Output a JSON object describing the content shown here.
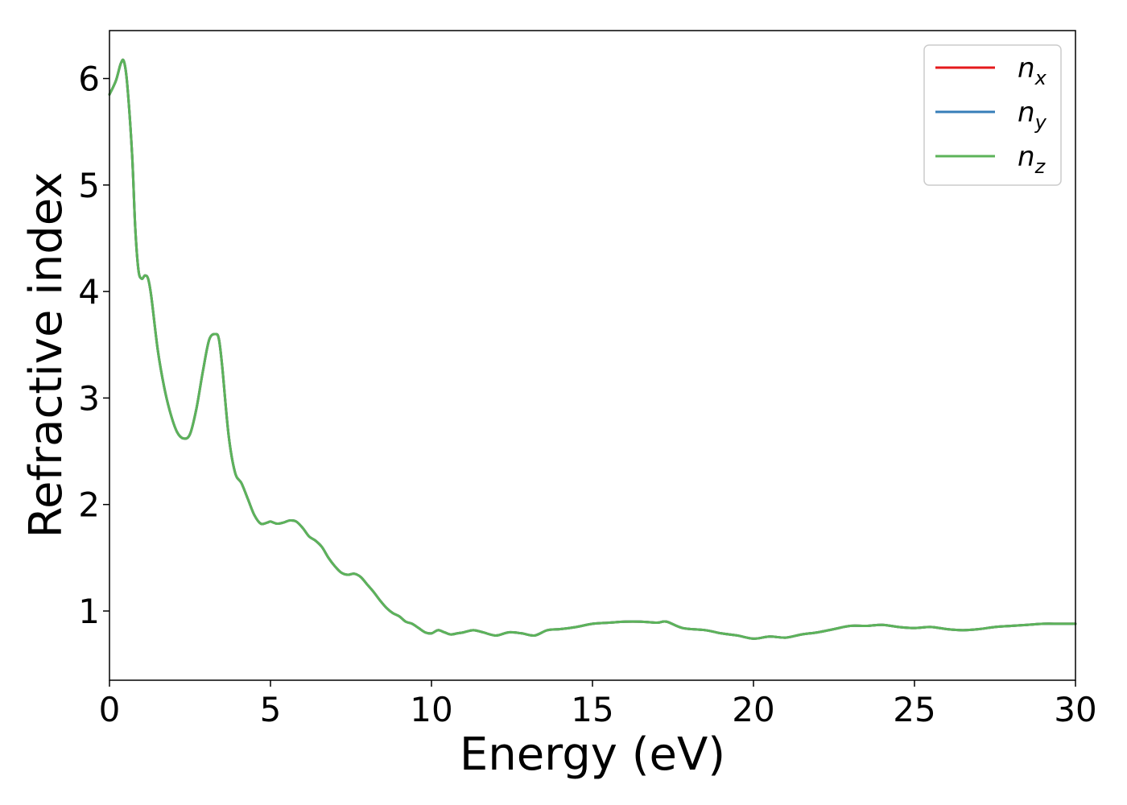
{
  "chart_data": {
    "type": "line",
    "title": "",
    "xlabel": "Energy (eV)",
    "ylabel": "Refractive index",
    "xlim": [
      0,
      30
    ],
    "ylim": [
      0.35,
      6.45
    ],
    "xticks": [
      0,
      5,
      10,
      15,
      20,
      25,
      30
    ],
    "yticks": [
      1,
      2,
      3,
      4,
      5,
      6
    ],
    "grid": false,
    "legend_position": "top-right",
    "series": [
      {
        "name": "n_x",
        "legend_main": "n",
        "legend_sub": "x",
        "color": "#e41a1c",
        "x": [
          0,
          0.2,
          0.35,
          0.45,
          0.55,
          0.7,
          0.8,
          0.9,
          1.0,
          1.1,
          1.2,
          1.3,
          1.5,
          1.7,
          1.9,
          2.1,
          2.3,
          2.5,
          2.7,
          2.9,
          3.1,
          3.3,
          3.4,
          3.5,
          3.7,
          3.9,
          4.1,
          4.3,
          4.5,
          4.7,
          4.9,
          5.0,
          5.2,
          5.4,
          5.6,
          5.8,
          6.0,
          6.2,
          6.4,
          6.6,
          6.8,
          7.0,
          7.2,
          7.4,
          7.6,
          7.8,
          8.0,
          8.2,
          8.4,
          8.6,
          8.8,
          9.0,
          9.2,
          9.4,
          9.6,
          9.8,
          10.0,
          10.2,
          10.4,
          10.6,
          10.8,
          11.0,
          11.3,
          11.6,
          12.0,
          12.4,
          12.8,
          13.2,
          13.6,
          14.0,
          14.5,
          15.0,
          15.5,
          16.0,
          16.5,
          17.0,
          17.3,
          17.8,
          18.5,
          19.0,
          19.5,
          20.0,
          20.5,
          21.0,
          21.5,
          22.0,
          22.5,
          23.0,
          23.5,
          24.0,
          24.5,
          25.0,
          25.5,
          26.0,
          26.5,
          27.0,
          27.5,
          28.0,
          28.5,
          29.0,
          29.5,
          30.0
        ],
        "y": [
          5.85,
          5.98,
          6.14,
          6.16,
          5.95,
          5.3,
          4.6,
          4.2,
          4.12,
          4.15,
          4.12,
          3.95,
          3.45,
          3.1,
          2.85,
          2.68,
          2.62,
          2.66,
          2.9,
          3.25,
          3.55,
          3.6,
          3.55,
          3.3,
          2.65,
          2.3,
          2.2,
          2.05,
          1.9,
          1.82,
          1.83,
          1.84,
          1.82,
          1.83,
          1.85,
          1.84,
          1.78,
          1.7,
          1.66,
          1.6,
          1.5,
          1.42,
          1.36,
          1.34,
          1.35,
          1.32,
          1.25,
          1.18,
          1.1,
          1.03,
          0.98,
          0.95,
          0.9,
          0.88,
          0.84,
          0.8,
          0.79,
          0.82,
          0.8,
          0.78,
          0.79,
          0.8,
          0.82,
          0.8,
          0.77,
          0.8,
          0.79,
          0.77,
          0.82,
          0.83,
          0.85,
          0.88,
          0.89,
          0.9,
          0.9,
          0.89,
          0.9,
          0.84,
          0.82,
          0.79,
          0.77,
          0.74,
          0.76,
          0.75,
          0.78,
          0.8,
          0.83,
          0.86,
          0.86,
          0.87,
          0.85,
          0.84,
          0.85,
          0.83,
          0.82,
          0.83,
          0.85,
          0.86,
          0.87,
          0.88,
          0.88,
          0.88
        ]
      },
      {
        "name": "n_y",
        "legend_main": "n",
        "legend_sub": "y",
        "color": "#377eb8",
        "x": [
          0,
          0.2,
          0.35,
          0.45,
          0.55,
          0.7,
          0.8,
          0.9,
          1.0,
          1.1,
          1.2,
          1.3,
          1.5,
          1.7,
          1.9,
          2.1,
          2.3,
          2.5,
          2.7,
          2.9,
          3.1,
          3.3,
          3.4,
          3.5,
          3.7,
          3.9,
          4.1,
          4.3,
          4.5,
          4.7,
          4.9,
          5.0,
          5.2,
          5.4,
          5.6,
          5.8,
          6.0,
          6.2,
          6.4,
          6.6,
          6.8,
          7.0,
          7.2,
          7.4,
          7.6,
          7.8,
          8.0,
          8.2,
          8.4,
          8.6,
          8.8,
          9.0,
          9.2,
          9.4,
          9.6,
          9.8,
          10.0,
          10.2,
          10.4,
          10.6,
          10.8,
          11.0,
          11.3,
          11.6,
          12.0,
          12.4,
          12.8,
          13.2,
          13.6,
          14.0,
          14.5,
          15.0,
          15.5,
          16.0,
          16.5,
          17.0,
          17.3,
          17.8,
          18.5,
          19.0,
          19.5,
          20.0,
          20.5,
          21.0,
          21.5,
          22.0,
          22.5,
          23.0,
          23.5,
          24.0,
          24.5,
          25.0,
          25.5,
          26.0,
          26.5,
          27.0,
          27.5,
          28.0,
          28.5,
          29.0,
          29.5,
          30.0
        ],
        "y": [
          5.85,
          5.98,
          6.14,
          6.16,
          5.95,
          5.3,
          4.6,
          4.2,
          4.12,
          4.15,
          4.12,
          3.95,
          3.45,
          3.1,
          2.85,
          2.68,
          2.62,
          2.66,
          2.9,
          3.25,
          3.55,
          3.6,
          3.55,
          3.3,
          2.65,
          2.3,
          2.2,
          2.05,
          1.9,
          1.82,
          1.83,
          1.84,
          1.82,
          1.83,
          1.85,
          1.84,
          1.78,
          1.7,
          1.66,
          1.6,
          1.5,
          1.42,
          1.36,
          1.34,
          1.35,
          1.32,
          1.25,
          1.18,
          1.1,
          1.03,
          0.98,
          0.95,
          0.9,
          0.88,
          0.84,
          0.8,
          0.79,
          0.82,
          0.8,
          0.78,
          0.79,
          0.8,
          0.82,
          0.8,
          0.77,
          0.8,
          0.79,
          0.77,
          0.82,
          0.83,
          0.85,
          0.88,
          0.89,
          0.9,
          0.9,
          0.89,
          0.9,
          0.84,
          0.82,
          0.79,
          0.77,
          0.74,
          0.76,
          0.75,
          0.78,
          0.8,
          0.83,
          0.86,
          0.86,
          0.87,
          0.85,
          0.84,
          0.85,
          0.83,
          0.82,
          0.83,
          0.85,
          0.86,
          0.87,
          0.88,
          0.88,
          0.88
        ]
      },
      {
        "name": "n_z",
        "legend_main": "n",
        "legend_sub": "z",
        "color": "#5cb35a",
        "x": [
          0,
          0.2,
          0.35,
          0.45,
          0.55,
          0.7,
          0.8,
          0.9,
          1.0,
          1.1,
          1.2,
          1.3,
          1.5,
          1.7,
          1.9,
          2.1,
          2.3,
          2.5,
          2.7,
          2.9,
          3.1,
          3.3,
          3.4,
          3.5,
          3.7,
          3.9,
          4.1,
          4.3,
          4.5,
          4.7,
          4.9,
          5.0,
          5.2,
          5.4,
          5.6,
          5.8,
          6.0,
          6.2,
          6.4,
          6.6,
          6.8,
          7.0,
          7.2,
          7.4,
          7.6,
          7.8,
          8.0,
          8.2,
          8.4,
          8.6,
          8.8,
          9.0,
          9.2,
          9.4,
          9.6,
          9.8,
          10.0,
          10.2,
          10.4,
          10.6,
          10.8,
          11.0,
          11.3,
          11.6,
          12.0,
          12.4,
          12.8,
          13.2,
          13.6,
          14.0,
          14.5,
          15.0,
          15.5,
          16.0,
          16.5,
          17.0,
          17.3,
          17.8,
          18.5,
          19.0,
          19.5,
          20.0,
          20.5,
          21.0,
          21.5,
          22.0,
          22.5,
          23.0,
          23.5,
          24.0,
          24.5,
          25.0,
          25.5,
          26.0,
          26.5,
          27.0,
          27.5,
          28.0,
          28.5,
          29.0,
          29.5,
          30.0
        ],
        "y": [
          5.85,
          5.98,
          6.14,
          6.16,
          5.95,
          5.3,
          4.6,
          4.2,
          4.12,
          4.15,
          4.12,
          3.95,
          3.45,
          3.1,
          2.85,
          2.68,
          2.62,
          2.66,
          2.9,
          3.25,
          3.55,
          3.6,
          3.55,
          3.3,
          2.65,
          2.3,
          2.2,
          2.05,
          1.9,
          1.82,
          1.83,
          1.84,
          1.82,
          1.83,
          1.85,
          1.84,
          1.78,
          1.7,
          1.66,
          1.6,
          1.5,
          1.42,
          1.36,
          1.34,
          1.35,
          1.32,
          1.25,
          1.18,
          1.1,
          1.03,
          0.98,
          0.95,
          0.9,
          0.88,
          0.84,
          0.8,
          0.79,
          0.82,
          0.8,
          0.78,
          0.79,
          0.8,
          0.82,
          0.8,
          0.77,
          0.8,
          0.79,
          0.77,
          0.82,
          0.83,
          0.85,
          0.88,
          0.89,
          0.9,
          0.9,
          0.89,
          0.9,
          0.84,
          0.82,
          0.79,
          0.77,
          0.74,
          0.76,
          0.75,
          0.78,
          0.8,
          0.83,
          0.86,
          0.86,
          0.87,
          0.85,
          0.84,
          0.85,
          0.83,
          0.82,
          0.83,
          0.85,
          0.86,
          0.87,
          0.88,
          0.88,
          0.88
        ]
      }
    ]
  }
}
